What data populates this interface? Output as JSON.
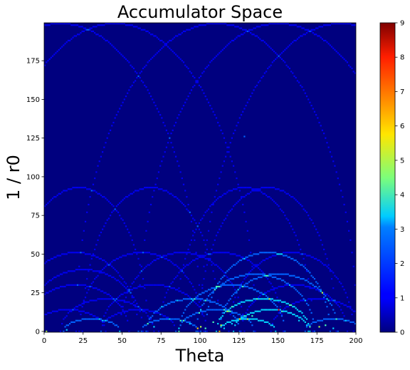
{
  "chart_data": {
    "type": "heatmap",
    "title": "Accumulator Space",
    "xlabel": "Theta",
    "ylabel": "1 / r0",
    "xlim": [
      0,
      200
    ],
    "ylim": [
      0,
      199
    ],
    "x_ticks": [
      "0",
      "25",
      "50",
      "75",
      "100",
      "125",
      "150",
      "175",
      "200"
    ],
    "y_ticks": [
      "0",
      "25",
      "50",
      "75",
      "100",
      "125",
      "150",
      "175"
    ],
    "colorbar": {
      "min": 0,
      "max": 9,
      "ticks": [
        "0",
        "1",
        "2",
        "3",
        "4",
        "5",
        "6",
        "7",
        "8",
        "9"
      ],
      "colormap": "jet"
    },
    "background_value": 0,
    "curves": [
      {
        "type": "arch",
        "peak_theta": 22,
        "peak_value": 93,
        "width": 44,
        "intensity": 1
      },
      {
        "type": "arch",
        "peak_theta": 68,
        "peak_value": 93,
        "width": 44,
        "intensity": 1
      },
      {
        "type": "arch",
        "peak_theta": 128,
        "peak_value": 93,
        "width": 44,
        "intensity": 1
      },
      {
        "type": "arch",
        "peak_theta": 143,
        "peak_value": 93,
        "width": 44,
        "intensity": 1
      },
      {
        "type": "arch",
        "peak_theta": 20,
        "peak_value": 51,
        "width": 40,
        "intensity": 1
      },
      {
        "type": "arch",
        "peak_theta": 62,
        "peak_value": 51,
        "width": 40,
        "intensity": 1
      },
      {
        "type": "arch",
        "peak_theta": 88,
        "peak_value": 51,
        "width": 40,
        "intensity": 1
      },
      {
        "type": "arch",
        "peak_theta": 113,
        "peak_value": 51,
        "width": 40,
        "intensity": 1
      },
      {
        "type": "arch",
        "peak_theta": 143,
        "peak_value": 51,
        "width": 40,
        "intensity": 2
      },
      {
        "type": "arch",
        "peak_theta": 158,
        "peak_value": 51,
        "width": 40,
        "intensity": 1
      },
      {
        "type": "arch",
        "peak_theta": 25,
        "peak_value": 40,
        "width": 38,
        "intensity": 1
      },
      {
        "type": "arch",
        "peak_theta": 135,
        "peak_value": 37,
        "width": 38,
        "intensity": 2
      },
      {
        "type": "arch",
        "peak_theta": 150,
        "peak_value": 37,
        "width": 38,
        "intensity": 2
      },
      {
        "type": "arch",
        "peak_theta": 20,
        "peak_value": 30,
        "width": 34,
        "intensity": 1
      },
      {
        "type": "arch",
        "peak_theta": 70,
        "peak_value": 30,
        "width": 34,
        "intensity": 1
      },
      {
        "type": "arch",
        "peak_theta": 120,
        "peak_value": 30,
        "width": 34,
        "intensity": 2
      },
      {
        "type": "arch",
        "peak_theta": 160,
        "peak_value": 30,
        "width": 34,
        "intensity": 1
      },
      {
        "type": "arch",
        "peak_theta": 40,
        "peak_value": 21,
        "width": 30,
        "intensity": 1
      },
      {
        "type": "arch",
        "peak_theta": 95,
        "peak_value": 21,
        "width": 30,
        "intensity": 2
      },
      {
        "type": "arch",
        "peak_theta": 140,
        "peak_value": 21,
        "width": 30,
        "intensity": 3
      },
      {
        "type": "arch",
        "peak_theta": 175,
        "peak_value": 21,
        "width": 30,
        "intensity": 1
      },
      {
        "type": "arch",
        "peak_theta": 15,
        "peak_value": 14,
        "width": 24,
        "intensity": 1
      },
      {
        "type": "arch",
        "peak_theta": 60,
        "peak_value": 14,
        "width": 24,
        "intensity": 1
      },
      {
        "type": "arch",
        "peak_theta": 110,
        "peak_value": 14,
        "width": 24,
        "intensity": 2
      },
      {
        "type": "arch",
        "peak_theta": 145,
        "peak_value": 14,
        "width": 24,
        "intensity": 3
      },
      {
        "type": "arch",
        "peak_theta": 30,
        "peak_value": 8,
        "width": 18,
        "intensity": 2
      },
      {
        "type": "arch",
        "peak_theta": 80,
        "peak_value": 8,
        "width": 18,
        "intensity": 2
      },
      {
        "type": "arch",
        "peak_theta": 130,
        "peak_value": 8,
        "width": 18,
        "intensity": 3
      },
      {
        "type": "arch",
        "peak_theta": 185,
        "peak_value": 8,
        "width": 18,
        "intensity": 2
      },
      {
        "type": "arch",
        "peak_theta": 10,
        "peak_value": 199,
        "width": 90,
        "intensity": 1
      },
      {
        "type": "arch",
        "peak_theta": 45,
        "peak_value": 199,
        "width": 90,
        "intensity": 1
      },
      {
        "type": "arch",
        "peak_theta": 110,
        "peak_value": 199,
        "width": 90,
        "intensity": 1
      },
      {
        "type": "arch",
        "peak_theta": 150,
        "peak_value": 199,
        "width": 90,
        "intensity": 1
      },
      {
        "type": "arch",
        "peak_theta": 190,
        "peak_value": 199,
        "width": 90,
        "intensity": 1
      }
    ],
    "hot_spots": [
      {
        "theta": 1,
        "value": 0,
        "intensity": 5
      },
      {
        "theta": 14,
        "value": 1,
        "intensity": 3
      },
      {
        "theta": 98,
        "value": 2,
        "intensity": 6
      },
      {
        "theta": 100,
        "value": 3,
        "intensity": 5
      },
      {
        "theta": 103,
        "value": 2,
        "intensity": 4
      },
      {
        "theta": 108,
        "value": 6,
        "intensity": 4
      },
      {
        "theta": 113,
        "value": 4,
        "intensity": 5
      },
      {
        "theta": 115,
        "value": 2,
        "intensity": 3
      },
      {
        "theta": 120,
        "value": 5,
        "intensity": 3
      },
      {
        "theta": 133,
        "value": 10,
        "intensity": 4
      },
      {
        "theta": 150,
        "value": 14,
        "intensity": 3
      },
      {
        "theta": 163,
        "value": 7,
        "intensity": 3
      },
      {
        "theta": 170,
        "value": 3,
        "intensity": 4
      },
      {
        "theta": 176,
        "value": 3,
        "intensity": 5
      },
      {
        "theta": 180,
        "value": 4,
        "intensity": 4
      },
      {
        "theta": 185,
        "value": 2,
        "intensity": 3
      },
      {
        "theta": 93,
        "value": 5,
        "intensity": 3
      },
      {
        "theta": 86,
        "value": 2,
        "intensity": 3
      },
      {
        "theta": 128,
        "value": 126,
        "intensity": 2
      },
      {
        "theta": 70,
        "value": 3,
        "intensity": 3
      }
    ]
  }
}
